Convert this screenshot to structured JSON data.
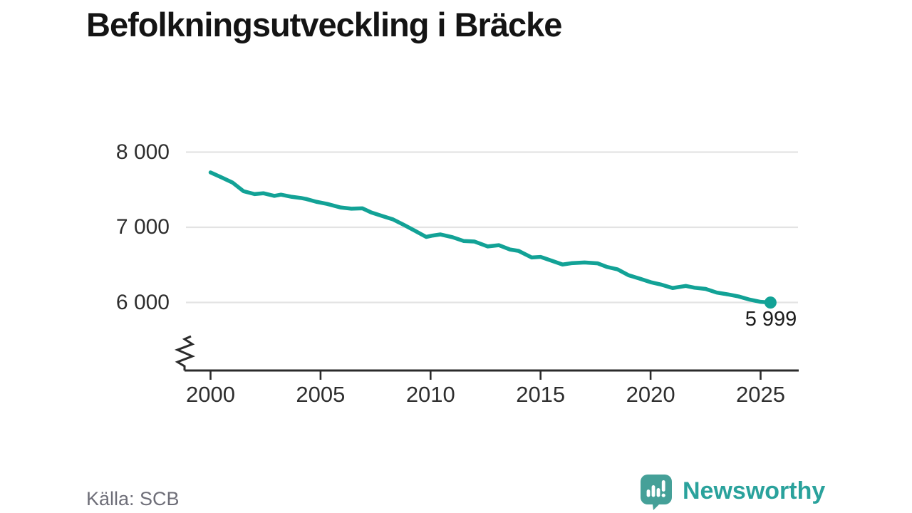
{
  "title": "Befolkningsutveckling i Bräcke",
  "source": {
    "label": "Källa: SCB"
  },
  "logo": {
    "name": "Newsworthy",
    "text": "Newsworthy",
    "icon": "speech-bubble-bar-chart-exclamation",
    "icon_color": "#45a098",
    "text_color": "#2aa29c"
  },
  "chart_data": {
    "type": "line",
    "title": "Befolkningsutveckling i Bräcke",
    "xlabel": "",
    "ylabel": "",
    "grid": "horizontal-only",
    "axis_break": true,
    "colors": {
      "line": "#12a296",
      "gridline": "#e3e3e3",
      "axis": "#2b2b2b",
      "tick_text": "#2e2e2e"
    },
    "x_ticks": [
      2000,
      2005,
      2010,
      2015,
      2020,
      2025
    ],
    "y_ticks": [
      {
        "value": 8000,
        "label": "8 000"
      },
      {
        "value": 7000,
        "label": "7 000"
      },
      {
        "value": 6000,
        "label": "6 000"
      }
    ],
    "y_displayed_range": [
      6000,
      8000
    ],
    "x_displayed_range": [
      1998.9,
      2026.7
    ],
    "end_label": "5 999",
    "end_point": {
      "x": 2025.45,
      "y": 5999
    },
    "series": [
      {
        "name": "Befolkning",
        "points": [
          [
            2000.0,
            7730
          ],
          [
            2000.5,
            7663
          ],
          [
            2001.0,
            7595
          ],
          [
            2001.5,
            7480
          ],
          [
            2002.0,
            7442
          ],
          [
            2002.4,
            7453
          ],
          [
            2002.9,
            7418
          ],
          [
            2003.2,
            7434
          ],
          [
            2003.7,
            7405
          ],
          [
            2004.1,
            7390
          ],
          [
            2004.35,
            7376
          ],
          [
            2004.8,
            7340
          ],
          [
            2005.3,
            7311
          ],
          [
            2005.9,
            7264
          ],
          [
            2006.4,
            7248
          ],
          [
            2006.9,
            7252
          ],
          [
            2007.3,
            7198
          ],
          [
            2007.8,
            7151
          ],
          [
            2008.3,
            7104
          ],
          [
            2008.8,
            7030
          ],
          [
            2009.3,
            6952
          ],
          [
            2009.8,
            6872
          ],
          [
            2010.1,
            6890
          ],
          [
            2010.45,
            6905
          ],
          [
            2011.0,
            6868
          ],
          [
            2011.5,
            6818
          ],
          [
            2012.0,
            6810
          ],
          [
            2012.6,
            6745
          ],
          [
            2013.1,
            6762
          ],
          [
            2013.6,
            6705
          ],
          [
            2014.0,
            6686
          ],
          [
            2014.6,
            6598
          ],
          [
            2015.0,
            6606
          ],
          [
            2015.5,
            6556
          ],
          [
            2016.0,
            6505
          ],
          [
            2016.4,
            6522
          ],
          [
            2017.0,
            6532
          ],
          [
            2017.6,
            6520
          ],
          [
            2018.0,
            6474
          ],
          [
            2018.5,
            6440
          ],
          [
            2019.0,
            6362
          ],
          [
            2019.5,
            6318
          ],
          [
            2020.0,
            6270
          ],
          [
            2020.5,
            6236
          ],
          [
            2021.0,
            6192
          ],
          [
            2021.6,
            6220
          ],
          [
            2022.0,
            6196
          ],
          [
            2022.5,
            6180
          ],
          [
            2023.0,
            6132
          ],
          [
            2023.5,
            6108
          ],
          [
            2024.0,
            6080
          ],
          [
            2024.5,
            6038
          ],
          [
            2025.0,
            6008
          ],
          [
            2025.45,
            5999
          ]
        ]
      }
    ]
  }
}
